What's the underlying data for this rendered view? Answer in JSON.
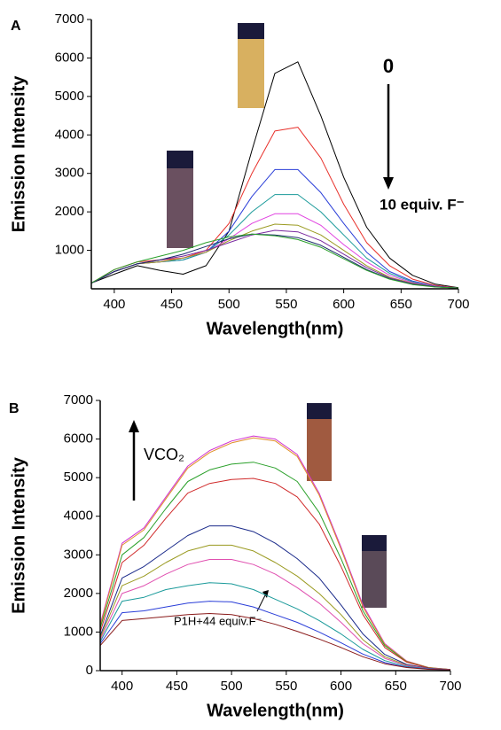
{
  "chart_data": [
    {
      "type": "line",
      "label": "A",
      "y_label": "Emission Intensity",
      "x_label": "Wavelength(nm)",
      "annotations": [
        "0",
        "10 equiv. F⁻"
      ],
      "x": [
        380,
        400,
        420,
        440,
        460,
        480,
        500,
        520,
        540,
        560,
        580,
        600,
        620,
        640,
        660,
        680,
        700
      ],
      "xlim": [
        380,
        700
      ],
      "xticks": [
        400,
        450,
        500,
        550,
        600,
        650,
        700
      ],
      "ylim": [
        0,
        7000
      ],
      "yticks": [
        1000,
        2000,
        3000,
        4000,
        5000,
        6000,
        7000
      ],
      "grid": false,
      "series": [
        {
          "color": "#000000",
          "values": [
            150,
            380,
            600,
            480,
            380,
            600,
            1500,
            3600,
            5600,
            5900,
            4500,
            2900,
            1600,
            800,
            350,
            120,
            30
          ]
        },
        {
          "color": "#e8302a",
          "values": [
            150,
            500,
            700,
            750,
            800,
            1000,
            1700,
            3000,
            4100,
            4200,
            3400,
            2200,
            1200,
            600,
            250,
            90,
            20
          ]
        },
        {
          "color": "#2a3ed8",
          "values": [
            150,
            450,
            650,
            700,
            750,
            950,
            1500,
            2400,
            3100,
            3100,
            2500,
            1700,
            950,
            450,
            200,
            70,
            20
          ]
        },
        {
          "color": "#1a9a9a",
          "values": [
            150,
            450,
            650,
            700,
            750,
            950,
            1400,
            2000,
            2450,
            2450,
            2000,
            1400,
            800,
            400,
            180,
            60,
            20
          ]
        },
        {
          "color": "#e040e0",
          "values": [
            150,
            450,
            650,
            700,
            800,
            950,
            1300,
            1700,
            1950,
            1950,
            1650,
            1150,
            700,
            350,
            160,
            60,
            20
          ]
        },
        {
          "color": "#9a9a20",
          "values": [
            150,
            450,
            650,
            700,
            800,
            950,
            1250,
            1500,
            1680,
            1650,
            1400,
            1000,
            600,
            300,
            140,
            50,
            20
          ]
        },
        {
          "color": "#7a2aa0",
          "values": [
            150,
            450,
            650,
            750,
            850,
            1000,
            1200,
            1400,
            1520,
            1480,
            1250,
            900,
            550,
            280,
            130,
            50,
            20
          ]
        },
        {
          "color": "#1a2a6a",
          "values": [
            150,
            450,
            650,
            750,
            900,
            1100,
            1300,
            1420,
            1400,
            1330,
            1130,
            820,
            500,
            260,
            120,
            50,
            20
          ]
        },
        {
          "color": "#2aa02a",
          "values": [
            150,
            500,
            700,
            850,
            1000,
            1200,
            1350,
            1420,
            1380,
            1280,
            1080,
            780,
            480,
            250,
            110,
            45,
            20
          ]
        }
      ]
    },
    {
      "type": "line",
      "label": "B",
      "y_label": "Emission Intensity",
      "x_label": "Wavelength(nm)",
      "annotations": [
        "VCO₂",
        "P1H+44 equiv.F⁻"
      ],
      "x": [
        380,
        400,
        420,
        440,
        460,
        480,
        500,
        520,
        540,
        560,
        580,
        600,
        620,
        640,
        660,
        680,
        700
      ],
      "xlim": [
        380,
        700
      ],
      "xticks": [
        400,
        450,
        500,
        550,
        600,
        650,
        700
      ],
      "ylim": [
        0,
        7000
      ],
      "yticks": [
        0,
        1000,
        2000,
        3000,
        4000,
        5000,
        6000,
        7000
      ],
      "grid": false,
      "series": [
        {
          "color": "#d030d0",
          "values": [
            1200,
            3300,
            3700,
            4500,
            5300,
            5700,
            5950,
            6080,
            6000,
            5600,
            4600,
            3200,
            1700,
            700,
            250,
            80,
            30
          ]
        },
        {
          "color": "#e0902a",
          "values": [
            1150,
            3250,
            3650,
            4450,
            5250,
            5650,
            5900,
            6030,
            5950,
            5550,
            4550,
            3150,
            1650,
            680,
            240,
            80,
            30
          ]
        },
        {
          "color": "#2aa02a",
          "values": [
            1100,
            3000,
            3450,
            4200,
            4900,
            5200,
            5350,
            5400,
            5250,
            4900,
            4100,
            2900,
            1550,
            650,
            230,
            75,
            30
          ]
        },
        {
          "color": "#d02a2a",
          "values": [
            1000,
            2800,
            3250,
            3950,
            4600,
            4850,
            4950,
            4980,
            4850,
            4500,
            3800,
            2700,
            1450,
            600,
            220,
            70,
            30
          ]
        },
        {
          "color": "#1a2a8a",
          "values": [
            900,
            2400,
            2700,
            3100,
            3500,
            3750,
            3750,
            3600,
            3300,
            2900,
            2400,
            1700,
            950,
            420,
            160,
            60,
            25
          ]
        },
        {
          "color": "#9a9a20",
          "values": [
            850,
            2200,
            2450,
            2800,
            3100,
            3250,
            3250,
            3100,
            2800,
            2450,
            2000,
            1450,
            800,
            360,
            140,
            50,
            25
          ]
        },
        {
          "color": "#e050b0",
          "values": [
            800,
            2000,
            2200,
            2500,
            2750,
            2880,
            2880,
            2750,
            2500,
            2150,
            1750,
            1250,
            700,
            320,
            130,
            50,
            25
          ]
        },
        {
          "color": "#1a9a9a",
          "values": [
            750,
            1800,
            1900,
            2100,
            2200,
            2280,
            2250,
            2100,
            1850,
            1600,
            1300,
            950,
            550,
            260,
            110,
            45,
            20
          ]
        },
        {
          "color": "#2a3ed8",
          "values": [
            700,
            1500,
            1550,
            1650,
            1750,
            1800,
            1780,
            1650,
            1450,
            1250,
            1000,
            720,
            430,
            210,
            90,
            40,
            20
          ]
        },
        {
          "color": "#8a1a1a",
          "values": [
            650,
            1300,
            1350,
            1400,
            1450,
            1480,
            1450,
            1350,
            1200,
            1020,
            820,
            600,
            360,
            180,
            80,
            35,
            20
          ]
        }
      ]
    }
  ]
}
